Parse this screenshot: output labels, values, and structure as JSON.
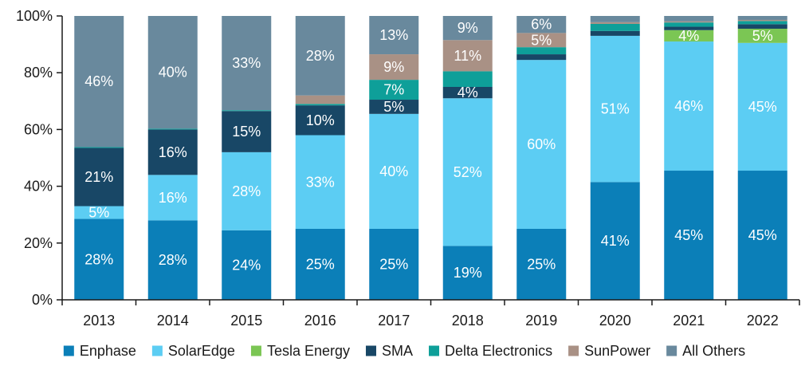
{
  "chart_data": {
    "type": "bar",
    "stacked": true,
    "categories": [
      "2013",
      "2014",
      "2015",
      "2016",
      "2017",
      "2018",
      "2019",
      "2020",
      "2021",
      "2022"
    ],
    "ylim": [
      0,
      100
    ],
    "yticks": [
      0,
      20,
      40,
      60,
      80,
      100
    ],
    "ytick_labels": [
      "0%",
      "20%",
      "40%",
      "60%",
      "80%",
      "100%"
    ],
    "legend_position": "bottom",
    "grid": false,
    "series": [
      {
        "name": "Enphase",
        "color": "#0b7fb8",
        "values": [
          28.5,
          28,
          24.5,
          25,
          25,
          19,
          25,
          41.5,
          45.5,
          45.5
        ],
        "labels": [
          "28%",
          "28%",
          "24%",
          "25%",
          "25%",
          "19%",
          "25%",
          "41%",
          "45%",
          "45%"
        ]
      },
      {
        "name": "SolarEdge",
        "color": "#5ccdf3",
        "values": [
          4.5,
          16,
          27.5,
          33,
          40.5,
          52,
          59.5,
          51.5,
          45.5,
          45
        ],
        "labels": [
          "5%",
          "16%",
          "28%",
          "33%",
          "40%",
          "52%",
          "60%",
          "51%",
          "46%",
          "45%"
        ]
      },
      {
        "name": "Tesla Energy",
        "color": "#7bc654",
        "values": [
          0,
          0,
          0,
          0,
          0,
          0,
          0,
          0,
          4,
          5
        ],
        "labels": [
          "",
          "",
          "",
          "",
          "",
          "",
          "",
          "",
          "4%",
          "5%"
        ]
      },
      {
        "name": "SMA",
        "color": "#184766",
        "values": [
          20.5,
          16,
          14.5,
          10.5,
          5,
          4,
          2,
          1.7,
          1.2,
          1.6
        ],
        "labels": [
          "21%",
          "16%",
          "15%",
          "10%",
          "5%",
          "4%",
          "",
          "",
          "",
          ""
        ]
      },
      {
        "name": "Delta Electronics",
        "color": "#0e9f99",
        "values": [
          0.3,
          0.3,
          0.3,
          0.5,
          7,
          5.5,
          2.5,
          2.5,
          1.5,
          1.1
        ],
        "labels": [
          "",
          "",
          "",
          "",
          "7%",
          "",
          "",
          "",
          "",
          ""
        ]
      },
      {
        "name": "SunPower",
        "color": "#a99185",
        "values": [
          0,
          0,
          0,
          3,
          9,
          11,
          5,
          0.6,
          0.4,
          0.4
        ],
        "labels": [
          "",
          "",
          "",
          "",
          "9%",
          "11%",
          "5%",
          "",
          "",
          ""
        ]
      },
      {
        "name": "All Others",
        "color": "#69899d",
        "values": [
          46.2,
          39.7,
          33.2,
          28,
          13.5,
          8.5,
          6,
          2.2,
          1.9,
          1.4
        ],
        "labels": [
          "46%",
          "40%",
          "33%",
          "28%",
          "13%",
          "9%",
          "6%",
          "",
          "",
          ""
        ]
      }
    ]
  }
}
